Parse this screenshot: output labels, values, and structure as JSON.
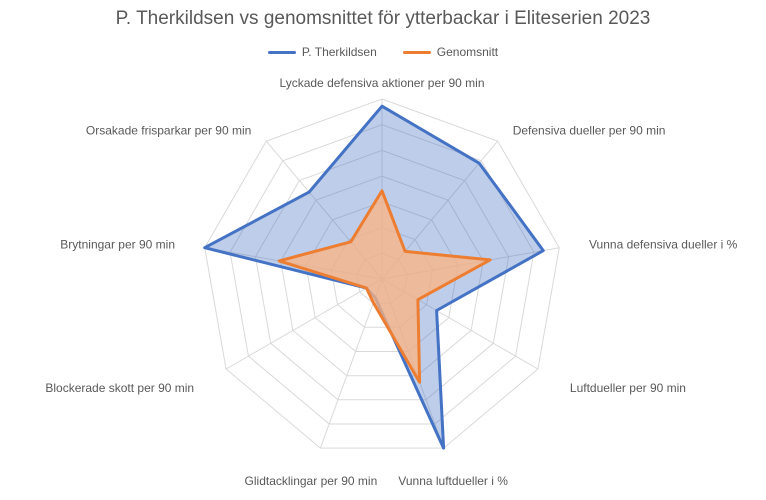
{
  "chart_data": {
    "type": "radar",
    "title": "P. Therkildsen vs genomsnittet för ytterbackar i Eliteserien 2023",
    "categories": [
      "Lyckade defensiva aktioner per 90 min",
      "Defensiva dueller per 90 min",
      "Vunna defensiva dueller i %",
      "Luftdueller per 90 min",
      "Vunna luftdueller i %",
      "Glidtacklingar per 90 min",
      "Blockerade skott per 90 min",
      "Brytningar per 90 min",
      "Orsakade frisparkar per 90 min"
    ],
    "series": [
      {
        "name": "P. Therkildsen",
        "color": "#4472C4",
        "fill": "rgba(68,114,196,0.35)",
        "values": [
          0.96,
          0.84,
          0.91,
          0.35,
          1.0,
          0.11,
          0.1,
          1.0,
          0.63
        ]
      },
      {
        "name": "Genomsnitt",
        "color": "#ED7D31",
        "fill": "rgba(252,180,130,0.75)",
        "values": [
          0.49,
          0.2,
          0.61,
          0.23,
          0.61,
          0.14,
          0.1,
          0.58,
          0.27
        ]
      }
    ],
    "rmax": 1.0,
    "rings": 7,
    "legend_position": "top"
  }
}
